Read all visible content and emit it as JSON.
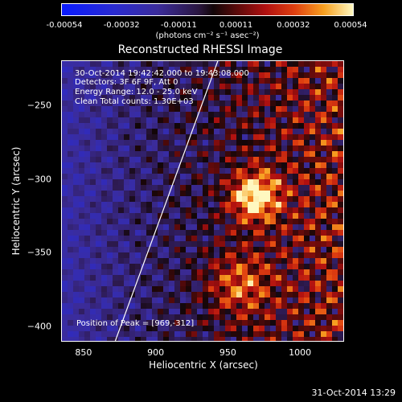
{
  "chart_data": {
    "type": "heatmap",
    "title": "Reconstructed RHESSI Image",
    "xlabel": "Heliocentric X (arcsec)",
    "ylabel": "Heliocentric Y (arcsec)",
    "xlim": [
      835,
      1030
    ],
    "ylim": [
      -410,
      -220
    ],
    "x_ticks": [
      "850",
      "900",
      "950",
      "1000"
    ],
    "y_ticks": [
      "-250",
      "-300",
      "-350",
      "-400"
    ],
    "colorbar": {
      "ticks": [
        "-0.00054",
        "-0.00032",
        "-0.00011",
        "0.00011",
        "0.00032",
        "0.00054"
      ],
      "unit_label": "(photons cm⁻² s⁻¹ asec⁻²)",
      "range": [
        -0.00054,
        0.00054
      ]
    },
    "annotations": {
      "time_range": "30-Oct-2014 19:42:42.000 to 19:43:08.000",
      "detectors": "Detectors: 3F 6F 9F, Att 0",
      "energy_range": "Energy Range: 12.0 - 25.0 keV",
      "method": "Clean     Total counts: 1.30E+03",
      "peak": "Position of Peak = [969,-312]"
    },
    "peak_position": [
      969,
      -312
    ],
    "limb_line": {
      "from": [
        872,
        -410
      ],
      "to": [
        943,
        -220
      ]
    }
  },
  "footer_date": "31-Oct-2014 13:29",
  "colors": {
    "background": "#000000",
    "foreground": "#ffffff",
    "limb": "#ffffff"
  }
}
